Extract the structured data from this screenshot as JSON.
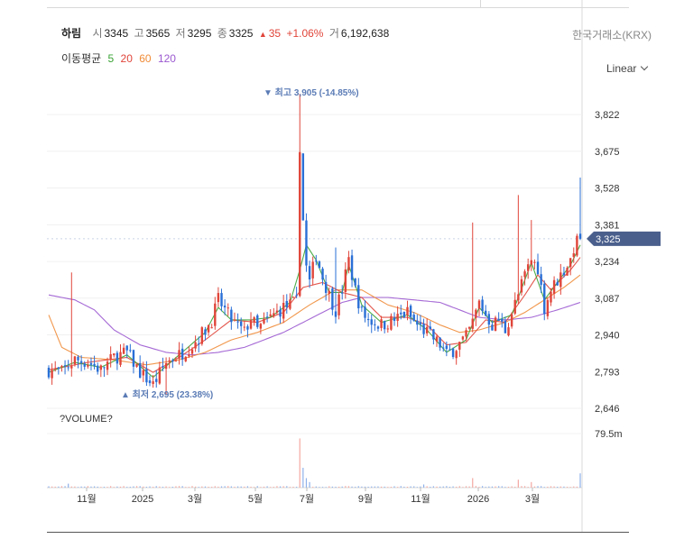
{
  "stock": {
    "name": "하림",
    "open_label": "시",
    "open": "3345",
    "high_label": "고",
    "high": "3565",
    "low_label": "저",
    "low": "3295",
    "close_label": "종",
    "close": "3325",
    "change_arrow": "▲",
    "change": "35",
    "change_pct": "+1.06%",
    "volume_label": "거",
    "volume": "6,192,638",
    "market": "한국거래소(KRX)"
  },
  "moving_average": {
    "label": "이동평균",
    "periods": [
      {
        "label": "5",
        "color": "#3aa335"
      },
      {
        "label": "20",
        "color": "#e0453a"
      },
      {
        "label": "60",
        "color": "#f08c38"
      },
      {
        "label": "120",
        "color": "#9b59d0"
      }
    ]
  },
  "scale": {
    "label": "Linear"
  },
  "colors": {
    "up": "#e0453a",
    "down": "#2a6fd6",
    "current_tag": "#4a5f8c",
    "annotation": "#5a7bb5"
  },
  "chart_data": {
    "type": "candlestick",
    "price_axis": {
      "ticks": [
        3822,
        3675,
        3528,
        3381,
        3234,
        3087,
        2940,
        2793,
        2646
      ],
      "ylim": [
        2646,
        3920
      ]
    },
    "volume_axis": {
      "label": "?VOLUME?",
      "tick": "79.5m"
    },
    "x_ticks": [
      "11월",
      "2025",
      "3월",
      "5월",
      "7월",
      "9월",
      "11월",
      "2026",
      "3월"
    ],
    "current_price": {
      "label": "3,325",
      "value": 3325
    },
    "high_annotation": {
      "text": "▼ 최고 3,905 (-14.85%)",
      "value": 3905
    },
    "low_annotation": {
      "text": "▲ 최저 2,695 (23.38%)",
      "value": 2695
    },
    "trend": [
      [
        0,
        2800
      ],
      [
        4,
        2790
      ],
      [
        8,
        2840
      ],
      [
        12,
        2830
      ],
      [
        16,
        2800
      ],
      [
        20,
        2850
      ],
      [
        24,
        2870
      ],
      [
        28,
        2790
      ],
      [
        32,
        2740
      ],
      [
        36,
        2830
      ],
      [
        40,
        2860
      ],
      [
        44,
        2900
      ],
      [
        48,
        2960
      ],
      [
        50,
        3000
      ],
      [
        52,
        3080
      ],
      [
        54,
        3040
      ],
      [
        56,
        3000
      ],
      [
        60,
        2950
      ],
      [
        62,
        3010
      ],
      [
        64,
        2960
      ],
      [
        68,
        3010
      ],
      [
        72,
        3050
      ],
      [
        74,
        3060
      ],
      [
        76,
        3070
      ],
      [
        77,
        3700
      ],
      [
        78,
        3400
      ],
      [
        79,
        3210
      ],
      [
        80,
        3150
      ],
      [
        82,
        3260
      ],
      [
        84,
        3170
      ],
      [
        86,
        3100
      ],
      [
        88,
        3040
      ],
      [
        90,
        3120
      ],
      [
        92,
        3240
      ],
      [
        94,
        3120
      ],
      [
        96,
        3030
      ],
      [
        98,
        3000
      ],
      [
        102,
        2980
      ],
      [
        106,
        3000
      ],
      [
        110,
        3030
      ],
      [
        112,
        2990
      ],
      [
        116,
        2950
      ],
      [
        120,
        2900
      ],
      [
        122,
        2860
      ],
      [
        124,
        2880
      ],
      [
        128,
        2930
      ],
      [
        130,
        2990
      ],
      [
        132,
        3070
      ],
      [
        134,
        3020
      ],
      [
        136,
        2980
      ],
      [
        138,
        3000
      ],
      [
        140,
        2960
      ],
      [
        142,
        3030
      ],
      [
        144,
        3100
      ],
      [
        146,
        3180
      ],
      [
        148,
        3240
      ],
      [
        150,
        3210
      ],
      [
        152,
        3050
      ],
      [
        154,
        3120
      ],
      [
        156,
        3160
      ],
      [
        158,
        3200
      ],
      [
        160,
        3240
      ],
      [
        161,
        3290
      ],
      [
        162,
        3310
      ],
      [
        163,
        3325
      ]
    ],
    "ma5": [
      [
        0,
        2790
      ],
      [
        8,
        2830
      ],
      [
        16,
        2810
      ],
      [
        24,
        2860
      ],
      [
        32,
        2770
      ],
      [
        40,
        2860
      ],
      [
        48,
        2950
      ],
      [
        52,
        3050
      ],
      [
        56,
        3000
      ],
      [
        62,
        3000
      ],
      [
        68,
        3010
      ],
      [
        74,
        3070
      ],
      [
        77,
        3200
      ],
      [
        79,
        3300
      ],
      [
        82,
        3240
      ],
      [
        86,
        3110
      ],
      [
        90,
        3110
      ],
      [
        92,
        3220
      ],
      [
        96,
        3060
      ],
      [
        102,
        2990
      ],
      [
        110,
        3020
      ],
      [
        116,
        2960
      ],
      [
        122,
        2870
      ],
      [
        128,
        2920
      ],
      [
        132,
        3050
      ],
      [
        136,
        2990
      ],
      [
        142,
        3020
      ],
      [
        146,
        3160
      ],
      [
        148,
        3230
      ],
      [
        152,
        3080
      ],
      [
        156,
        3150
      ],
      [
        160,
        3220
      ],
      [
        163,
        3300
      ]
    ],
    "ma20": [
      [
        0,
        2800
      ],
      [
        12,
        2830
      ],
      [
        24,
        2850
      ],
      [
        32,
        2790
      ],
      [
        40,
        2850
      ],
      [
        48,
        2920
      ],
      [
        56,
        3000
      ],
      [
        64,
        2990
      ],
      [
        72,
        3030
      ],
      [
        78,
        3130
      ],
      [
        84,
        3150
      ],
      [
        90,
        3110
      ],
      [
        96,
        3090
      ],
      [
        102,
        3010
      ],
      [
        110,
        3010
      ],
      [
        116,
        2980
      ],
      [
        122,
        2900
      ],
      [
        128,
        2910
      ],
      [
        134,
        3000
      ],
      [
        140,
        2990
      ],
      [
        146,
        3100
      ],
      [
        150,
        3180
      ],
      [
        154,
        3120
      ],
      [
        160,
        3200
      ],
      [
        163,
        3250
      ]
    ],
    "ma60": [
      [
        0,
        3020
      ],
      [
        4,
        2890
      ],
      [
        10,
        2850
      ],
      [
        20,
        2840
      ],
      [
        30,
        2820
      ],
      [
        40,
        2840
      ],
      [
        48,
        2870
      ],
      [
        56,
        2920
      ],
      [
        64,
        2950
      ],
      [
        72,
        2990
      ],
      [
        80,
        3060
      ],
      [
        88,
        3120
      ],
      [
        96,
        3120
      ],
      [
        104,
        3060
      ],
      [
        112,
        3030
      ],
      [
        120,
        2980
      ],
      [
        126,
        2950
      ],
      [
        132,
        2960
      ],
      [
        140,
        2990
      ],
      [
        146,
        3030
      ],
      [
        152,
        3080
      ],
      [
        158,
        3130
      ],
      [
        163,
        3180
      ]
    ],
    "ma120": [
      [
        0,
        3100
      ],
      [
        8,
        3080
      ],
      [
        14,
        3040
      ],
      [
        20,
        2960
      ],
      [
        28,
        2900
      ],
      [
        36,
        2870
      ],
      [
        44,
        2860
      ],
      [
        52,
        2870
      ],
      [
        60,
        2890
      ],
      [
        66,
        2920
      ],
      [
        72,
        2950
      ],
      [
        78,
        2990
      ],
      [
        84,
        3030
      ],
      [
        90,
        3070
      ],
      [
        96,
        3090
      ],
      [
        104,
        3090
      ],
      [
        112,
        3080
      ],
      [
        120,
        3070
      ],
      [
        126,
        3040
      ],
      [
        132,
        3010
      ],
      [
        140,
        3000
      ],
      [
        148,
        3010
      ],
      [
        156,
        3040
      ],
      [
        163,
        3070
      ]
    ],
    "spikes": [
      [
        7,
        3190
      ],
      [
        36,
        2700
      ],
      [
        77,
        3905
      ],
      [
        88,
        3290
      ],
      [
        130,
        3390
      ],
      [
        144,
        3500
      ],
      [
        148,
        3400
      ],
      [
        163,
        3570
      ]
    ],
    "volume_spikes": [
      [
        6,
        0.05
      ],
      [
        77,
        0.62
      ],
      [
        78,
        0.25
      ],
      [
        79,
        0.12
      ],
      [
        80,
        0.07
      ],
      [
        115,
        0.04
      ],
      [
        130,
        0.12
      ],
      [
        144,
        0.1
      ],
      [
        148,
        0.07
      ],
      [
        163,
        0.18
      ]
    ]
  }
}
